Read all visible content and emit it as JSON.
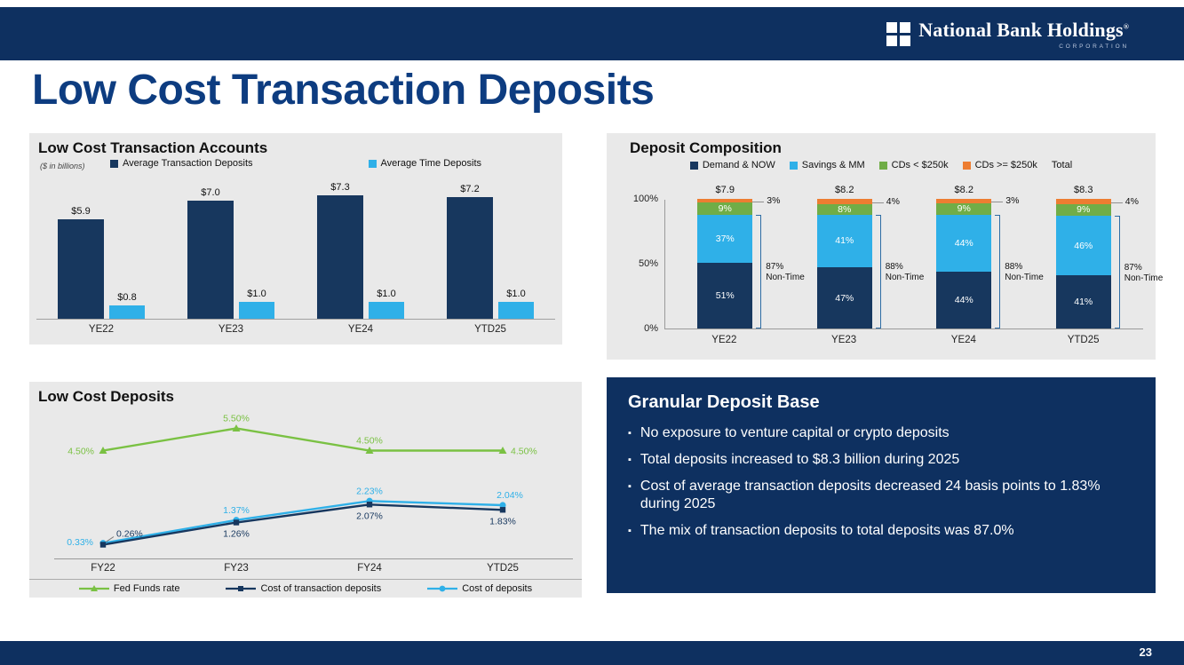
{
  "header": {
    "company": "National Bank Holdings",
    "registered": "®",
    "corporation": "CORPORATION"
  },
  "title": "Low Cost Transaction Deposits",
  "footer": {
    "page_number": "23"
  },
  "colors": {
    "brand_navy": "#0e3060",
    "title_blue": "#0d3c80",
    "dark_bar": "#17375e",
    "light_blue": "#2fb0e8",
    "green": "#70ad47",
    "line_green": "#7ac143",
    "orange": "#ed7d31",
    "panel_gray": "#e9e9e9"
  },
  "granular_panel": {
    "title": "Granular Deposit Base",
    "bullets": [
      "No exposure to venture capital or crypto deposits",
      "Total deposits increased to $8.3 billion during 2025",
      "Cost of average transaction deposits decreased 24 basis points to 1.83% during 2025",
      "The mix of transaction deposits to total deposits was 87.0%"
    ]
  },
  "chart_data": [
    {
      "type": "bar",
      "title": "Low Cost Transaction Accounts",
      "note": "($ in billions)",
      "categories": [
        "YE22",
        "YE23",
        "YE24",
        "YTD25"
      ],
      "series": [
        {
          "name": "Average Transaction Deposits",
          "color": "#17375e",
          "values": [
            5.9,
            7.0,
            7.3,
            7.2
          ],
          "labels": [
            "$5.9",
            "$7.0",
            "$7.3",
            "$7.2"
          ]
        },
        {
          "name": "Average Time Deposits",
          "color": "#2fb0e8",
          "values": [
            0.8,
            1.0,
            1.0,
            1.0
          ],
          "labels": [
            "$0.8",
            "$1.0",
            "$1.0",
            "$1.0"
          ]
        }
      ],
      "ylim": [
        0,
        8
      ],
      "legend_position": "top",
      "grid": false
    },
    {
      "type": "bar",
      "stacked_100": true,
      "title": "Deposit Composition",
      "categories": [
        "YE22",
        "YE23",
        "YE24",
        "YTD25"
      ],
      "total_labels": [
        "$7.9",
        "$8.2",
        "$8.2",
        "$8.3"
      ],
      "series": [
        {
          "name": "Demand & NOW",
          "color": "#17375e",
          "values": [
            51,
            47,
            44,
            41
          ],
          "labels": [
            "51%",
            "47%",
            "44%",
            "41%"
          ]
        },
        {
          "name": "Savings & MM",
          "color": "#2fb0e8",
          "values": [
            37,
            41,
            44,
            46
          ],
          "labels": [
            "37%",
            "41%",
            "44%",
            "46%"
          ]
        },
        {
          "name": "CDs < $250k",
          "color": "#70ad47",
          "values": [
            9,
            8,
            9,
            9
          ],
          "labels": [
            "9%",
            "8%",
            "9%",
            "9%"
          ]
        },
        {
          "name": "CDs >= $250k",
          "color": "#ed7d31",
          "values": [
            3,
            4,
            3,
            4
          ],
          "labels": [
            "3%",
            "4%",
            "3%",
            "4%"
          ],
          "label_outside": true
        }
      ],
      "legend_extra": "Total",
      "non_time": [
        {
          "pct": "87%",
          "label": "Non-Time"
        },
        {
          "pct": "88%",
          "label": "Non-Time"
        },
        {
          "pct": "88%",
          "label": "Non-Time"
        },
        {
          "pct": "87%",
          "label": "Non-Time"
        }
      ],
      "yticks": [
        {
          "value": 0,
          "label": "0%"
        },
        {
          "value": 50,
          "label": "50%"
        },
        {
          "value": 100,
          "label": "100%"
        }
      ],
      "ylim": [
        0,
        100
      ],
      "legend_position": "top",
      "grid": false
    },
    {
      "type": "line",
      "title": "Low Cost Deposits",
      "categories": [
        "FY22",
        "FY23",
        "FY24",
        "YTD25"
      ],
      "series": [
        {
          "name": "Fed Funds rate",
          "color": "#7ac143",
          "marker": "triangle",
          "values": [
            4.5,
            5.5,
            4.5,
            4.5
          ],
          "labels": [
            "4.50%",
            "5.50%",
            "4.50%",
            "4.50%"
          ]
        },
        {
          "name": "Cost of transaction deposits",
          "color": "#17375e",
          "marker": "square",
          "values": [
            0.26,
            1.26,
            2.07,
            1.83
          ],
          "labels": [
            "0.26%",
            "1.26%",
            "2.07%",
            "1.83%"
          ]
        },
        {
          "name": "Cost of deposits",
          "color": "#2fb0e8",
          "marker": "circle",
          "values": [
            0.33,
            1.37,
            2.23,
            2.04
          ],
          "labels": [
            "0.33%",
            "1.37%",
            "2.23%",
            "2.04%"
          ]
        }
      ],
      "ylim": [
        0,
        6
      ],
      "legend_position": "bottom",
      "grid": false
    }
  ]
}
